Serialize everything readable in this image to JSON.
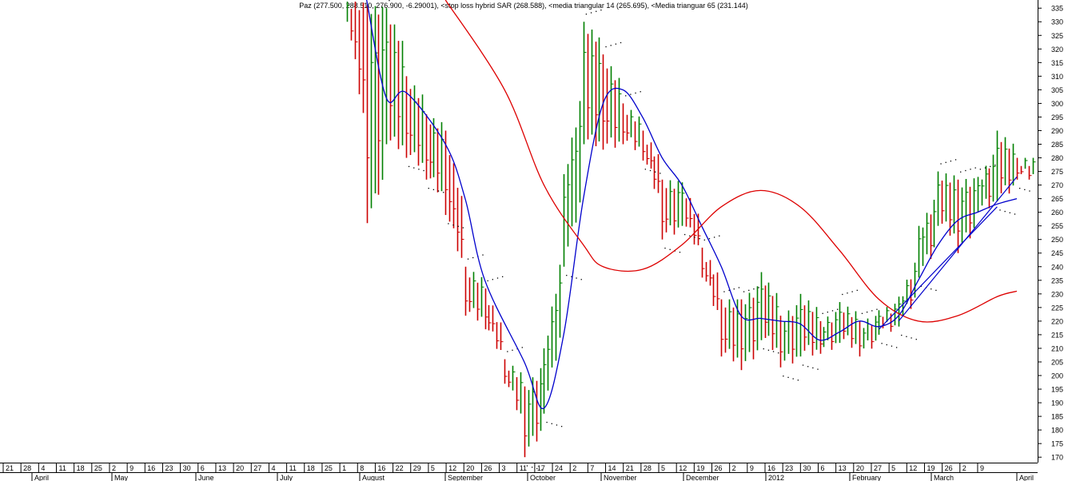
{
  "chart_data": {
    "type": "ohlc",
    "title": "Paz (277.500, 288.510, 276.900, -6.29001), <stop loss hybrid SAR (268.588), <media triangular 14 (265.695), <Media trianguar  65 (231.144)",
    "y_axis": {
      "ticks": [
        170,
        175,
        180,
        185,
        190,
        195,
        200,
        205,
        210,
        215,
        220,
        225,
        230,
        235,
        240,
        245,
        250,
        255,
        260,
        265,
        270,
        275,
        280,
        285,
        290,
        295,
        300,
        305,
        310,
        315,
        320,
        325,
        330,
        335
      ],
      "range": [
        168,
        338
      ],
      "side": "right"
    },
    "x_axis": {
      "day_ticks": [
        "21",
        "28",
        "4",
        "11",
        "18",
        "25",
        "2",
        "9",
        "16",
        "23",
        "30",
        "6",
        "13",
        "20",
        "27",
        "4",
        "11",
        "18",
        "25",
        "1",
        "8",
        "16",
        "22",
        "29",
        "5",
        "12",
        "20",
        "26",
        "3",
        "11",
        "17",
        "24",
        "2",
        "7",
        "14",
        "21",
        "28",
        "5",
        "12",
        "19",
        "26",
        "2",
        "9",
        "16",
        "23",
        "30",
        "6",
        "13",
        "20",
        "27",
        "5",
        "12",
        "19",
        "26",
        "2",
        "9"
      ],
      "month_labels": [
        "April",
        "May",
        "June",
        "July",
        "August",
        "September",
        "October",
        "November",
        "December",
        "2012",
        "February",
        "March",
        "April"
      ]
    },
    "series": [
      {
        "name": "Paz",
        "kind": "ohlc-bars",
        "up_color": "#008000",
        "down_color": "#cc0000",
        "bars_sampled": [
          {
            "d": "Aug 1",
            "h": 338,
            "l": 330
          },
          {
            "d": "Aug 8",
            "h": 336,
            "l": 256
          },
          {
            "d": "Aug 16",
            "h": 335,
            "l": 285
          },
          {
            "d": "Aug 22",
            "h": 310,
            "l": 280
          },
          {
            "d": "Aug 29",
            "h": 296,
            "l": 272
          },
          {
            "d": "Sep 5",
            "h": 290,
            "l": 259
          },
          {
            "d": "Sep 12",
            "h": 240,
            "l": 222
          },
          {
            "d": "Sep 20",
            "h": 232,
            "l": 217
          },
          {
            "d": "Sep 26",
            "h": 206,
            "l": 197
          },
          {
            "d": "Oct 3",
            "h": 196,
            "l": 170
          },
          {
            "d": "Oct 11",
            "h": 210,
            "l": 186
          },
          {
            "d": "Oct 17",
            "h": 274,
            "l": 240
          },
          {
            "d": "Oct 24",
            "h": 330,
            "l": 285
          },
          {
            "d": "Nov 2",
            "h": 318,
            "l": 283
          },
          {
            "d": "Nov 7",
            "h": 300,
            "l": 285
          },
          {
            "d": "Nov 14",
            "h": 290,
            "l": 279
          },
          {
            "d": "Nov 21",
            "h": 272,
            "l": 250
          },
          {
            "d": "Nov 28",
            "h": 271,
            "l": 255
          },
          {
            "d": "Dec 5",
            "h": 247,
            "l": 236
          },
          {
            "d": "Dec 12",
            "h": 228,
            "l": 207
          },
          {
            "d": "Dec 19",
            "h": 228,
            "l": 202
          },
          {
            "d": "Dec 26",
            "h": 238,
            "l": 213
          },
          {
            "d": "Jan 2",
            "h": 222,
            "l": 203
          },
          {
            "d": "Jan 9",
            "h": 230,
            "l": 207
          },
          {
            "d": "Jan 16",
            "h": 220,
            "l": 208
          },
          {
            "d": "Jan 23",
            "h": 227,
            "l": 212
          },
          {
            "d": "Jan 30",
            "h": 220,
            "l": 207
          },
          {
            "d": "Feb 6",
            "h": 224,
            "l": 215
          },
          {
            "d": "Feb 13",
            "h": 229,
            "l": 218
          },
          {
            "d": "Feb 20",
            "h": 255,
            "l": 236
          },
          {
            "d": "Feb 27",
            "h": 275,
            "l": 255
          },
          {
            "d": "Mar 5",
            "h": 272,
            "l": 245
          },
          {
            "d": "Mar 12",
            "h": 273,
            "l": 260
          },
          {
            "d": "Mar 19",
            "h": 290,
            "l": 264
          },
          {
            "d": "Mar 26",
            "h": 280,
            "l": 272
          }
        ]
      },
      {
        "name": "media traingular 14",
        "color": "#0000cc",
        "points": [
          [
            "Aug 8",
            338
          ],
          [
            "Aug 16",
            302
          ],
          [
            "Aug 22",
            304
          ],
          [
            "Sep 5",
            285
          ],
          [
            "Sep 12",
            265
          ],
          [
            "Sep 20",
            235
          ],
          [
            "Oct 3",
            205
          ],
          [
            "Oct 11",
            188
          ],
          [
            "Oct 17",
            215
          ],
          [
            "Oct 24",
            265
          ],
          [
            "Nov 2",
            300
          ],
          [
            "Nov 7",
            305
          ],
          [
            "Nov 14",
            295
          ],
          [
            "Nov 21",
            280
          ],
          [
            "Nov 28",
            270
          ],
          [
            "Dec 5",
            255
          ],
          [
            "Dec 12",
            240
          ],
          [
            "Dec 19",
            222
          ],
          [
            "Dec 26",
            221
          ],
          [
            "Jan 2",
            220
          ],
          [
            "Jan 9",
            219
          ],
          [
            "Jan 16",
            213
          ],
          [
            "Jan 23",
            216
          ],
          [
            "Jan 30",
            220
          ],
          [
            "Feb 6",
            218
          ],
          [
            "Feb 13",
            222
          ],
          [
            "Feb 20",
            235
          ],
          [
            "Feb 27",
            248
          ],
          [
            "Mar 5",
            257
          ],
          [
            "Mar 12",
            260
          ],
          [
            "Mar 19",
            263
          ],
          [
            "Mar 26",
            265
          ]
        ]
      },
      {
        "name": "Media trianguar  65",
        "color": "#dd0000",
        "points": [
          [
            "Sep 5",
            338
          ],
          [
            "Sep 26",
            305
          ],
          [
            "Oct 11",
            270
          ],
          [
            "Oct 24",
            248
          ],
          [
            "Nov 2",
            240
          ],
          [
            "Nov 14",
            239
          ],
          [
            "Nov 28",
            248
          ],
          [
            "Dec 12",
            262
          ],
          [
            "Dec 26",
            268
          ],
          [
            "Jan 9",
            262
          ],
          [
            "Jan 23",
            246
          ],
          [
            "Feb 6",
            228
          ],
          [
            "Feb 20",
            220
          ],
          [
            "Mar 5",
            222
          ],
          [
            "Mar 19",
            229
          ],
          [
            "Mar 26",
            231
          ]
        ]
      },
      {
        "name": "stop loss hybrid SAR",
        "color": "#000000",
        "style": "dots"
      }
    ],
    "trendlines": [
      {
        "from": [
          "Feb 6",
          217
        ],
        "to": [
          "Mar 19",
          262
        ]
      },
      {
        "from": [
          "Feb 13",
          220
        ],
        "to": [
          "Mar 26",
          273
        ]
      }
    ],
    "grid": false,
    "legend": "title"
  }
}
